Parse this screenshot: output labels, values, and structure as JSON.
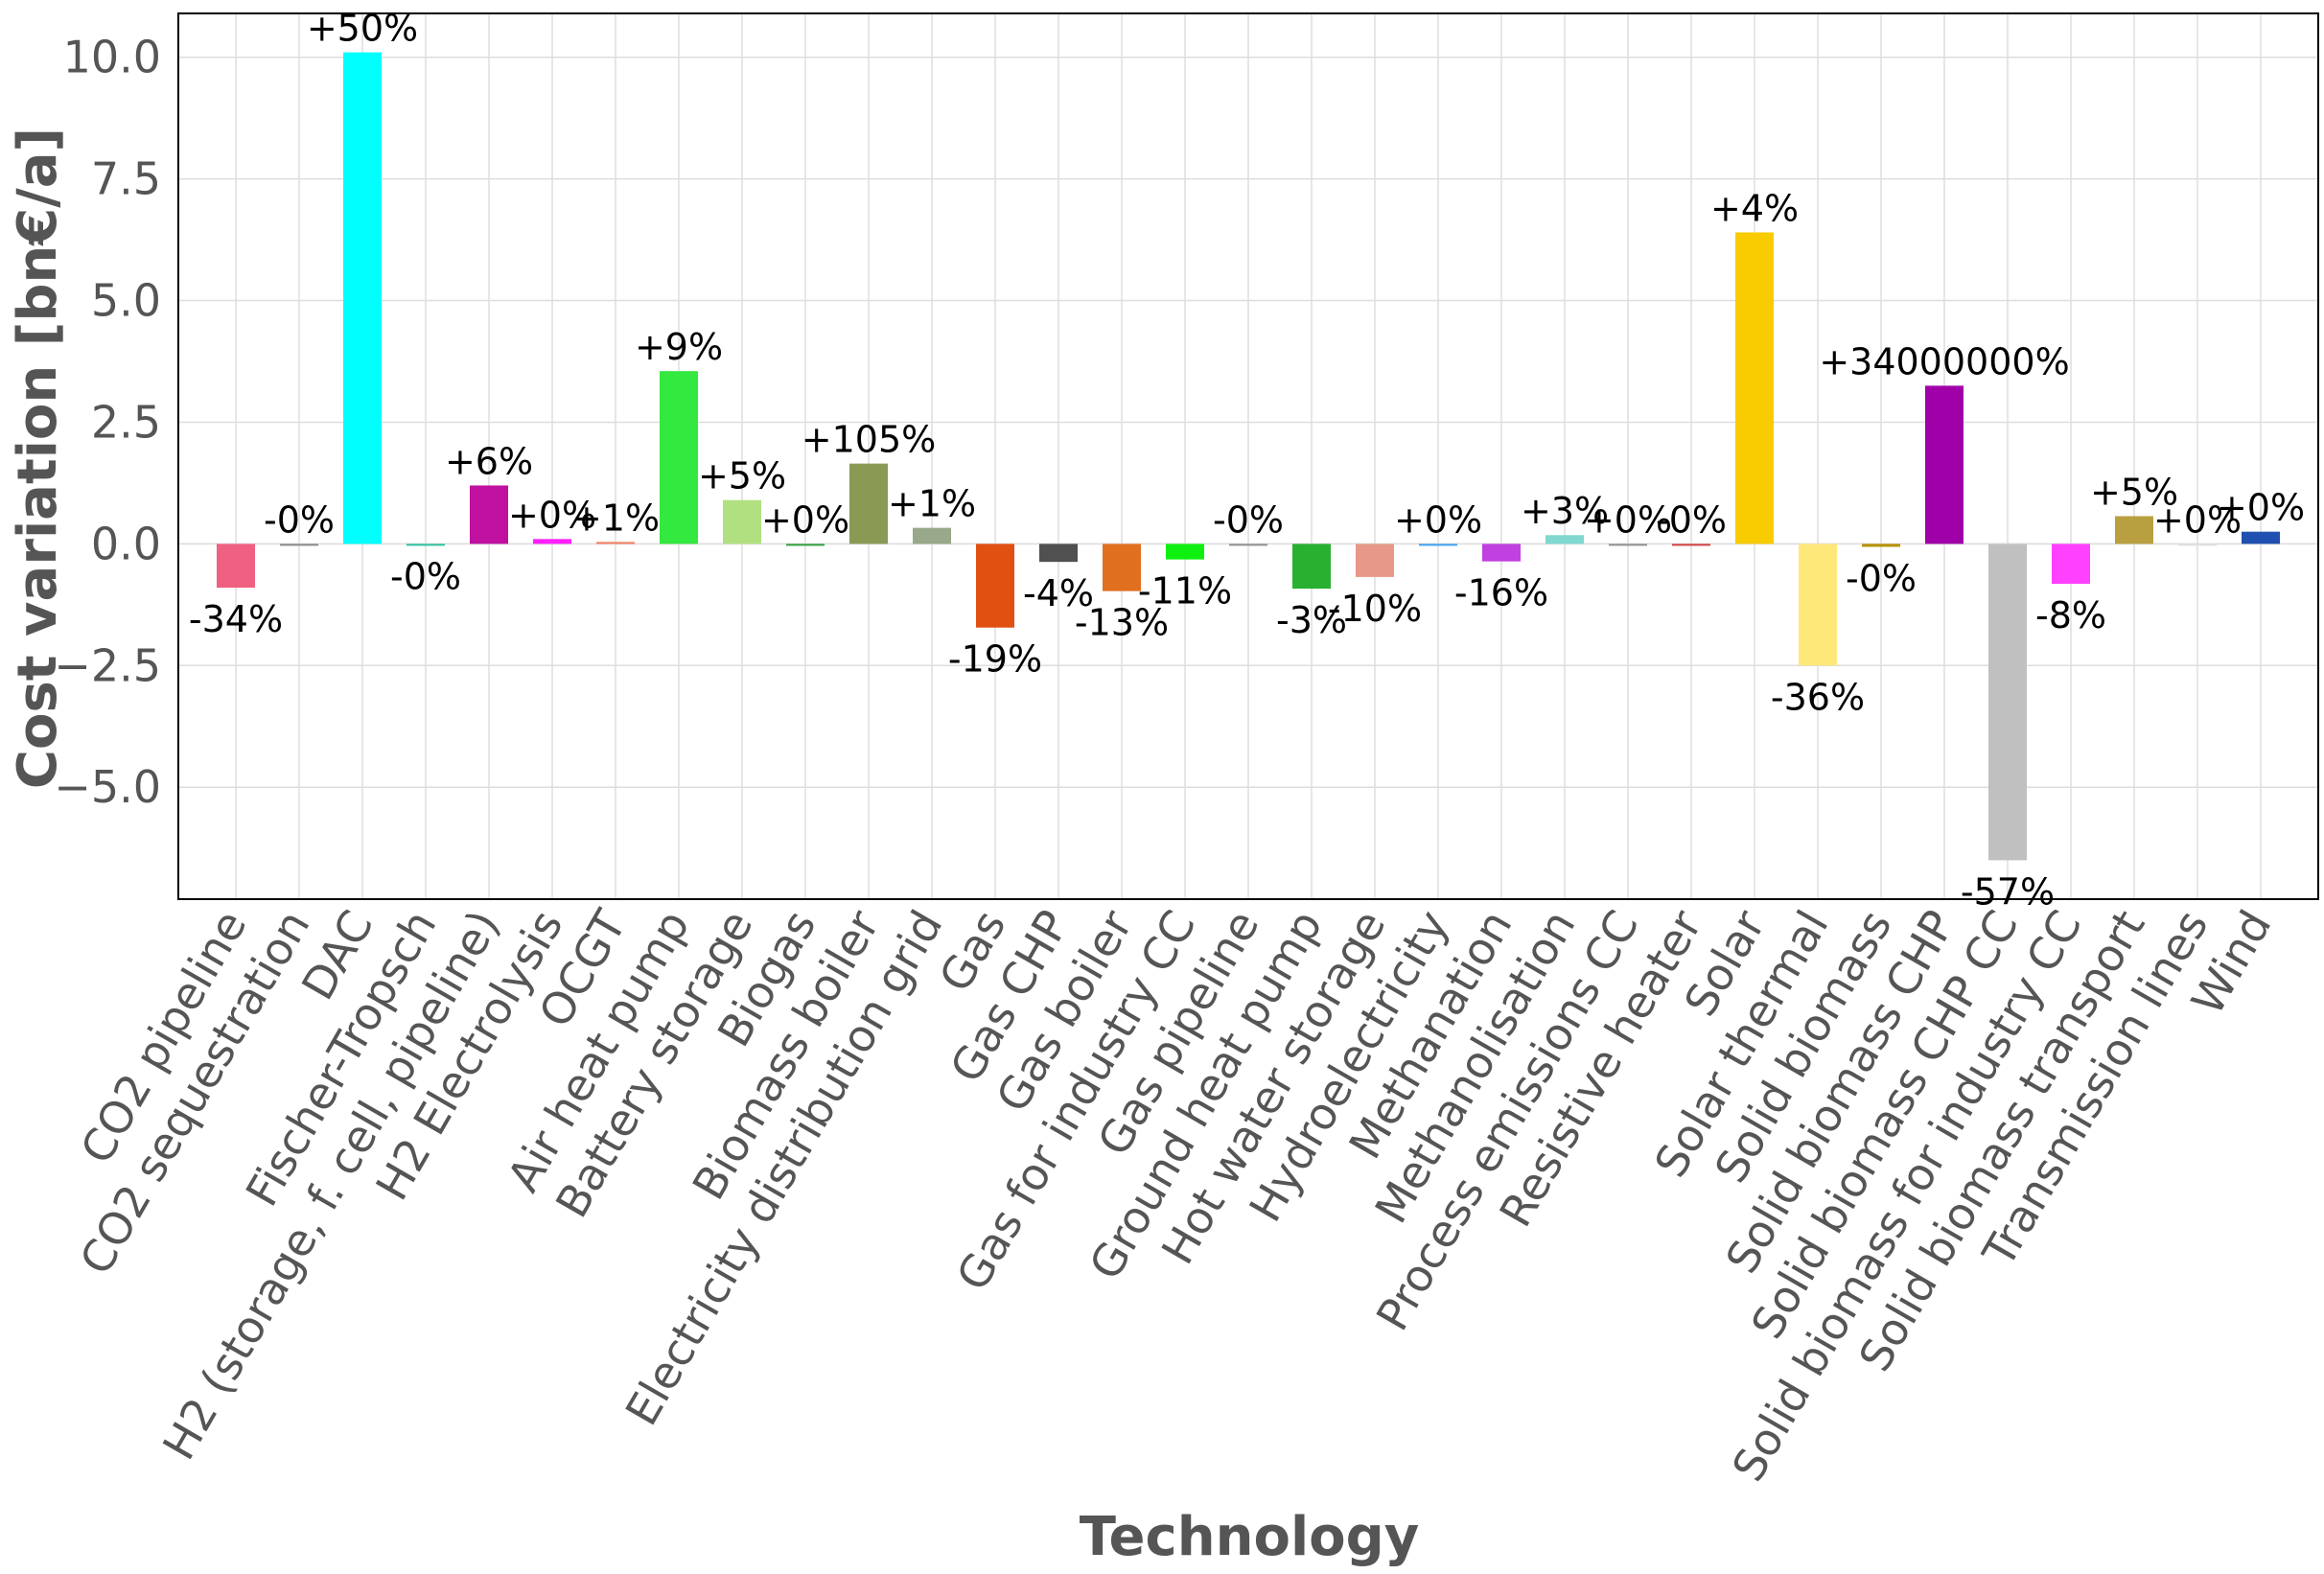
{
  "chart_data": {
    "type": "bar",
    "title": "",
    "xlabel": "Technology",
    "ylabel": "Cost variation [bn€/a]",
    "ylim": [
      -7.3,
      10.9
    ],
    "yticks": [
      10.0,
      7.5,
      5.0,
      2.5,
      0.0,
      -2.5,
      -5.0
    ],
    "ytick_labels": [
      "10.0",
      "7.5",
      "5.0",
      "2.5",
      "0.0",
      "−2.5",
      "−5.0"
    ],
    "grid": true,
    "categories": [
      "CO2 pipeline",
      "CO2 sequestration",
      "DAC",
      "Fischer-Tropsch",
      "H2 (storage, f. cell, pipeline)",
      "H2 Electrolysis",
      "OCGT",
      "Air heat pump",
      "Battery storage",
      "Biogas",
      "Biomass boiler",
      "Electricity distribution grid",
      "Gas",
      "Gas CHP",
      "Gas boiler",
      "Gas for industry CC",
      "Gas pipeline",
      "Ground heat pump",
      "Hot water storage",
      "Hydroelectricity",
      "Methanation",
      "Methanolisation",
      "Process emissions CC",
      "Resistive heater",
      "Solar",
      "Solar thermal",
      "Solid biomass",
      "Solid biomass CHP",
      "Solid biomass CHP CC",
      "Solid biomass for industry CC",
      "Solid biomass transport",
      "Transmission lines",
      "Wind"
    ],
    "values": [
      -0.9,
      0.0,
      10.1,
      -0.02,
      1.2,
      0.1,
      0.04,
      3.55,
      0.9,
      0.0,
      1.65,
      0.33,
      -1.72,
      -0.37,
      -0.97,
      -0.32,
      0.0,
      -0.92,
      -0.68,
      0.0,
      -0.36,
      0.18,
      0.0,
      0.0,
      6.4,
      -2.5,
      -0.06,
      3.25,
      -6.5,
      -0.82,
      0.57,
      0.0,
      0.25
    ],
    "labels": [
      "-34%",
      "-0%",
      "+50%",
      "-0%",
      "+6%",
      "+0%",
      "+1%",
      "+9%",
      "+5%",
      "+0%",
      "+105%",
      "+1%",
      "-19%",
      "-4%",
      "-13%",
      "-11%",
      "-0%",
      "-3%",
      "-10%",
      "+0%",
      "-16%",
      "+3%",
      "+0%",
      "-0%",
      "+4%",
      "-36%",
      "-0%",
      "+34000000%",
      "-57%",
      "-8%",
      "+5%",
      "+0%",
      "+0%"
    ],
    "colors": [
      "#f06080",
      "#8a8a8a",
      "#00ffff",
      "#30c0a0",
      "#c010a0",
      "#ff20ff",
      "#f08060",
      "#33e83e",
      "#b0e080",
      "#30a040",
      "#8a9a55",
      "#98a888",
      "#e05010",
      "#505050",
      "#e07020",
      "#10f010",
      "#909090",
      "#28b030",
      "#e89888",
      "#40a0f0",
      "#c040e0",
      "#80d8d0",
      "#909090",
      "#d04040",
      "#f8cc00",
      "#ffe87a",
      "#b89000",
      "#a000a8",
      "#c0c0c0",
      "#ff40ff",
      "#b8a040",
      "#e0e0e0",
      "#2050b0"
    ]
  }
}
